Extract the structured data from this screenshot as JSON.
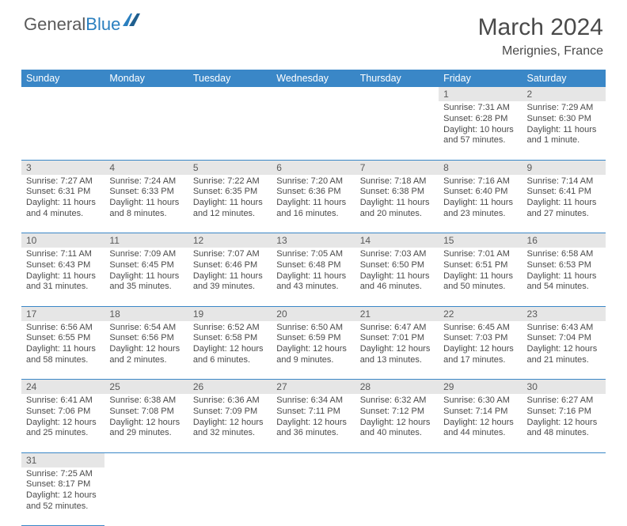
{
  "logo": {
    "text1": "General",
    "text2": "Blue"
  },
  "title": "March 2024",
  "location": "Merignies, France",
  "weekdays": [
    "Sunday",
    "Monday",
    "Tuesday",
    "Wednesday",
    "Thursday",
    "Friday",
    "Saturday"
  ],
  "colors": {
    "header_bg": "#3a87c7",
    "header_text": "#ffffff",
    "daynum_bg": "#e6e6e6",
    "border": "#3a87c7",
    "text": "#4a4a4a",
    "logo_accent": "#2a7fbf"
  },
  "weeks": [
    [
      null,
      null,
      null,
      null,
      null,
      {
        "n": "1",
        "sunrise": "7:31 AM",
        "sunset": "6:28 PM",
        "daylight": "10 hours and 57 minutes."
      },
      {
        "n": "2",
        "sunrise": "7:29 AM",
        "sunset": "6:30 PM",
        "daylight": "11 hours and 1 minute."
      }
    ],
    [
      {
        "n": "3",
        "sunrise": "7:27 AM",
        "sunset": "6:31 PM",
        "daylight": "11 hours and 4 minutes."
      },
      {
        "n": "4",
        "sunrise": "7:24 AM",
        "sunset": "6:33 PM",
        "daylight": "11 hours and 8 minutes."
      },
      {
        "n": "5",
        "sunrise": "7:22 AM",
        "sunset": "6:35 PM",
        "daylight": "11 hours and 12 minutes."
      },
      {
        "n": "6",
        "sunrise": "7:20 AM",
        "sunset": "6:36 PM",
        "daylight": "11 hours and 16 minutes."
      },
      {
        "n": "7",
        "sunrise": "7:18 AM",
        "sunset": "6:38 PM",
        "daylight": "11 hours and 20 minutes."
      },
      {
        "n": "8",
        "sunrise": "7:16 AM",
        "sunset": "6:40 PM",
        "daylight": "11 hours and 23 minutes."
      },
      {
        "n": "9",
        "sunrise": "7:14 AM",
        "sunset": "6:41 PM",
        "daylight": "11 hours and 27 minutes."
      }
    ],
    [
      {
        "n": "10",
        "sunrise": "7:11 AM",
        "sunset": "6:43 PM",
        "daylight": "11 hours and 31 minutes."
      },
      {
        "n": "11",
        "sunrise": "7:09 AM",
        "sunset": "6:45 PM",
        "daylight": "11 hours and 35 minutes."
      },
      {
        "n": "12",
        "sunrise": "7:07 AM",
        "sunset": "6:46 PM",
        "daylight": "11 hours and 39 minutes."
      },
      {
        "n": "13",
        "sunrise": "7:05 AM",
        "sunset": "6:48 PM",
        "daylight": "11 hours and 43 minutes."
      },
      {
        "n": "14",
        "sunrise": "7:03 AM",
        "sunset": "6:50 PM",
        "daylight": "11 hours and 46 minutes."
      },
      {
        "n": "15",
        "sunrise": "7:01 AM",
        "sunset": "6:51 PM",
        "daylight": "11 hours and 50 minutes."
      },
      {
        "n": "16",
        "sunrise": "6:58 AM",
        "sunset": "6:53 PM",
        "daylight": "11 hours and 54 minutes."
      }
    ],
    [
      {
        "n": "17",
        "sunrise": "6:56 AM",
        "sunset": "6:55 PM",
        "daylight": "11 hours and 58 minutes."
      },
      {
        "n": "18",
        "sunrise": "6:54 AM",
        "sunset": "6:56 PM",
        "daylight": "12 hours and 2 minutes."
      },
      {
        "n": "19",
        "sunrise": "6:52 AM",
        "sunset": "6:58 PM",
        "daylight": "12 hours and 6 minutes."
      },
      {
        "n": "20",
        "sunrise": "6:50 AM",
        "sunset": "6:59 PM",
        "daylight": "12 hours and 9 minutes."
      },
      {
        "n": "21",
        "sunrise": "6:47 AM",
        "sunset": "7:01 PM",
        "daylight": "12 hours and 13 minutes."
      },
      {
        "n": "22",
        "sunrise": "6:45 AM",
        "sunset": "7:03 PM",
        "daylight": "12 hours and 17 minutes."
      },
      {
        "n": "23",
        "sunrise": "6:43 AM",
        "sunset": "7:04 PM",
        "daylight": "12 hours and 21 minutes."
      }
    ],
    [
      {
        "n": "24",
        "sunrise": "6:41 AM",
        "sunset": "7:06 PM",
        "daylight": "12 hours and 25 minutes."
      },
      {
        "n": "25",
        "sunrise": "6:38 AM",
        "sunset": "7:08 PM",
        "daylight": "12 hours and 29 minutes."
      },
      {
        "n": "26",
        "sunrise": "6:36 AM",
        "sunset": "7:09 PM",
        "daylight": "12 hours and 32 minutes."
      },
      {
        "n": "27",
        "sunrise": "6:34 AM",
        "sunset": "7:11 PM",
        "daylight": "12 hours and 36 minutes."
      },
      {
        "n": "28",
        "sunrise": "6:32 AM",
        "sunset": "7:12 PM",
        "daylight": "12 hours and 40 minutes."
      },
      {
        "n": "29",
        "sunrise": "6:30 AM",
        "sunset": "7:14 PM",
        "daylight": "12 hours and 44 minutes."
      },
      {
        "n": "30",
        "sunrise": "6:27 AM",
        "sunset": "7:16 PM",
        "daylight": "12 hours and 48 minutes."
      }
    ],
    [
      {
        "n": "31",
        "sunrise": "7:25 AM",
        "sunset": "8:17 PM",
        "daylight": "12 hours and 52 minutes."
      },
      null,
      null,
      null,
      null,
      null,
      null
    ]
  ],
  "labels": {
    "sunrise": "Sunrise: ",
    "sunset": "Sunset: ",
    "daylight": "Daylight: "
  }
}
